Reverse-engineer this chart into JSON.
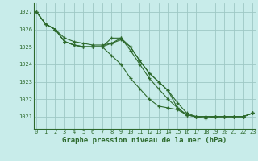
{
  "line1": [
    1027,
    1026.3,
    1026,
    1025.3,
    1025.1,
    1025,
    1025,
    1025,
    1025.5,
    1025.5,
    1025,
    1024.2,
    1023.5,
    1023,
    1022.5,
    1021.5,
    1021.1,
    1021,
    1021,
    1021,
    1021,
    1021,
    1021,
    1021.2
  ],
  "line2": [
    1027,
    1026.3,
    1026,
    1025.3,
    1025.1,
    1025,
    1025,
    1025,
    1025.2,
    1025.5,
    1024.8,
    1024.0,
    1023.2,
    1022.6,
    1022.0,
    1021.5,
    1021.1,
    1021,
    1021,
    1021,
    1021,
    1021,
    1021,
    1021.2
  ],
  "line3": [
    1027,
    1026.3,
    1026,
    1025.3,
    1025.1,
    1025,
    1025,
    1025,
    1024.5,
    1024.0,
    1023.2,
    1022.6,
    1022.0,
    1021.6,
    1021.5,
    1021.4,
    1021.1,
    1021,
    1021,
    1021,
    1021,
    1021,
    1021,
    1021.2
  ],
  "line4": [
    1027,
    1026.3,
    1026,
    1025.5,
    1025.3,
    1025.2,
    1025.1,
    1025.1,
    1025.2,
    1025.4,
    1025.0,
    1024.2,
    1023.5,
    1023.0,
    1022.5,
    1021.8,
    1021.2,
    1021.0,
    1020.9,
    1021.0,
    1021.0,
    1021.0,
    1021.0,
    1021.2
  ],
  "line_color": "#2d6a2d",
  "bg_color": "#c8ecea",
  "grid_color": "#9ec8c4",
  "title": "Graphe pression niveau de la mer (hPa)",
  "ylim": [
    1020.3,
    1027.5
  ],
  "yticks": [
    1021,
    1022,
    1023,
    1024,
    1025,
    1026,
    1027
  ],
  "xlim": [
    -0.3,
    23.3
  ],
  "xticks": [
    0,
    1,
    2,
    3,
    4,
    5,
    6,
    7,
    8,
    9,
    10,
    11,
    12,
    13,
    14,
    15,
    16,
    17,
    18,
    19,
    20,
    21,
    22,
    23
  ],
  "xlabel_fontsize": 6.5,
  "tick_fontsize": 5.0
}
